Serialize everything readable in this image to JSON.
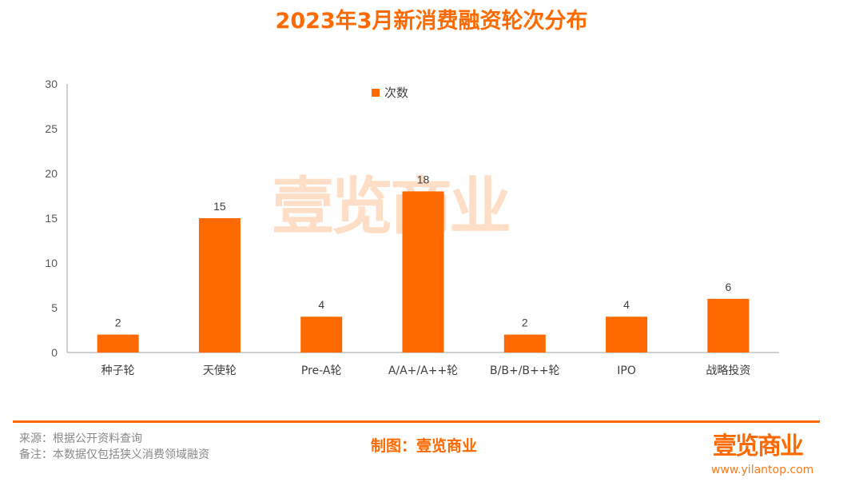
{
  "chart_data": {
    "type": "bar",
    "title": "2023年3月新消费融资轮次分布",
    "categories": [
      "种子轮",
      "天使轮",
      "Pre-A轮",
      "A/A+/A++轮",
      "B/B+/B++轮",
      "IPO",
      "战略投资"
    ],
    "series": [
      {
        "name": "次数",
        "values": [
          2,
          15,
          4,
          18,
          2,
          4,
          6
        ]
      }
    ],
    "ylim": [
      0,
      30
    ],
    "yticks": [
      0,
      5,
      10,
      15,
      20,
      25,
      30
    ],
    "grid": false,
    "legend": "top-center",
    "color": "#ff6a00"
  },
  "watermark": "壹览商业",
  "footer": {
    "source": "来源：根据公开资料查询",
    "note": "备注：本数据仅包括狭义消费领域融资",
    "maker": "制图：壹览商业",
    "logo": "壹览商业",
    "url": "www.yilantop.com"
  }
}
